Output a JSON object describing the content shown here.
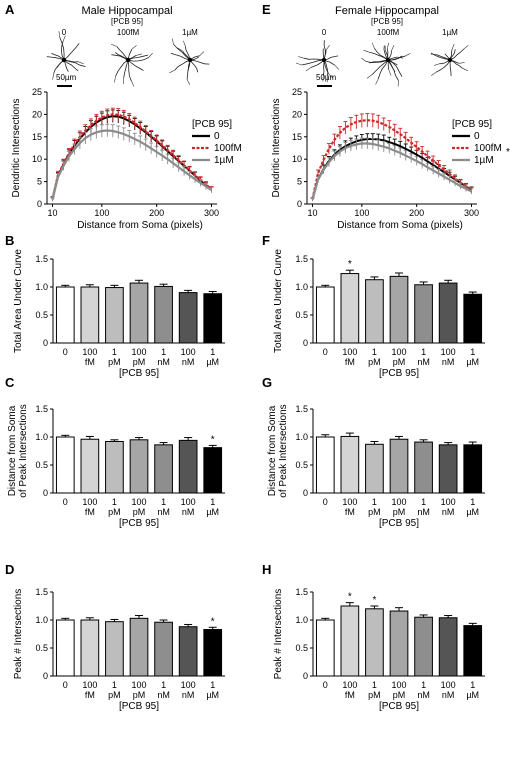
{
  "neuron_labels": [
    "0",
    "100fM",
    "1µM"
  ],
  "scale_bar": "50µm",
  "chart_data": [
    {
      "panel": "A",
      "type": "line",
      "title": "Male Hippocampal",
      "subtitle": "[PCB 95]",
      "xlabel": "Distance from Soma (pixels)",
      "ylabel": "Dendritic Intersections",
      "xlim": [
        0,
        310
      ],
      "ylim": [
        0,
        25
      ],
      "xticks": [
        10,
        100,
        200,
        300
      ],
      "yticks": [
        0,
        5,
        10,
        15,
        20,
        25
      ],
      "legend_title": "[PCB 95]",
      "legend_placement": "right",
      "x": [
        10,
        20,
        30,
        40,
        50,
        60,
        70,
        80,
        90,
        100,
        110,
        120,
        130,
        140,
        150,
        160,
        170,
        180,
        190,
        200,
        210,
        220,
        230,
        240,
        250,
        260,
        270,
        280,
        290,
        300
      ],
      "series": [
        {
          "name": "0",
          "color": "#000000",
          "values": [
            1.2,
            6.2,
            8.8,
            11.0,
            13.0,
            14.6,
            16.0,
            17.2,
            18.2,
            18.9,
            19.4,
            19.6,
            19.5,
            19.1,
            18.5,
            17.8,
            16.9,
            16.0,
            15.0,
            14.0,
            12.9,
            11.8,
            10.7,
            9.6,
            8.5,
            7.4,
            6.3,
            5.2,
            4.2,
            3.2
          ],
          "err": [
            0.4,
            0.8,
            1.0,
            1.1,
            1.2,
            1.3,
            1.3,
            1.4,
            1.4,
            1.4,
            1.4,
            1.4,
            1.4,
            1.4,
            1.3,
            1.3,
            1.3,
            1.3,
            1.2,
            1.2,
            1.2,
            1.1,
            1.1,
            1.0,
            1.0,
            0.9,
            0.8,
            0.8,
            0.7,
            0.6
          ]
        },
        {
          "name": "100fM",
          "color": "#cc2a2a",
          "values": [
            1.0,
            6.5,
            9.0,
            11.3,
            13.3,
            15.0,
            16.4,
            17.6,
            18.6,
            19.3,
            19.8,
            20.0,
            19.9,
            19.5,
            18.9,
            18.1,
            17.2,
            16.2,
            15.2,
            14.2,
            13.1,
            12.0,
            10.9,
            9.8,
            8.6,
            7.5,
            6.4,
            5.3,
            4.3,
            3.3
          ],
          "err": [
            0.4,
            0.8,
            1.0,
            1.1,
            1.2,
            1.3,
            1.3,
            1.4,
            1.4,
            1.4,
            1.4,
            1.4,
            1.4,
            1.4,
            1.3,
            1.3,
            1.3,
            1.3,
            1.2,
            1.2,
            1.2,
            1.1,
            1.1,
            1.0,
            1.0,
            0.9,
            0.8,
            0.8,
            0.7,
            0.6
          ]
        },
        {
          "name": "1µM",
          "color": "#8c8c8c",
          "values": [
            1.0,
            6.0,
            8.5,
            10.6,
            12.2,
            13.6,
            14.7,
            15.5,
            16.0,
            16.3,
            16.4,
            16.3,
            16.0,
            15.6,
            15.1,
            14.5,
            13.9,
            13.2,
            12.4,
            11.6,
            10.8,
            10.0,
            9.1,
            8.2,
            7.3,
            6.4,
            5.5,
            4.7,
            3.9,
            3.1
          ],
          "err": [
            0.4,
            0.8,
            1.0,
            1.1,
            1.2,
            1.3,
            1.3,
            1.4,
            1.4,
            1.4,
            1.4,
            1.4,
            1.4,
            1.4,
            1.3,
            1.3,
            1.3,
            1.3,
            1.2,
            1.2,
            1.2,
            1.1,
            1.1,
            1.0,
            1.0,
            0.9,
            0.8,
            0.8,
            0.7,
            0.6
          ]
        }
      ]
    },
    {
      "panel": "E",
      "type": "line",
      "title": "Female Hippocampal",
      "subtitle": "[PCB 95]",
      "xlabel": "Distance from Soma (pixels)",
      "ylabel": "Dendritic Intersections",
      "xlim": [
        0,
        310
      ],
      "ylim": [
        0,
        25
      ],
      "xticks": [
        10,
        100,
        200,
        300
      ],
      "yticks": [
        0,
        5,
        10,
        15,
        20,
        25
      ],
      "legend_title": "[PCB 95]",
      "legend_placement": "right",
      "annotation": "*",
      "x": [
        10,
        20,
        30,
        40,
        50,
        60,
        70,
        80,
        90,
        100,
        110,
        120,
        130,
        140,
        150,
        160,
        170,
        180,
        190,
        200,
        210,
        220,
        230,
        240,
        250,
        260,
        270,
        280,
        290,
        300
      ],
      "series": [
        {
          "name": "0",
          "color": "#000000",
          "values": [
            1.0,
            5.5,
            7.8,
            9.6,
            11.0,
            12.1,
            12.9,
            13.5,
            14.0,
            14.3,
            14.5,
            14.5,
            14.4,
            14.2,
            13.8,
            13.4,
            12.9,
            12.3,
            11.7,
            11.0,
            10.3,
            9.5,
            8.7,
            7.9,
            7.1,
            6.3,
            5.5,
            4.7,
            3.9,
            3.2
          ],
          "err": [
            0.3,
            0.7,
            0.9,
            1.0,
            1.1,
            1.1,
            1.2,
            1.2,
            1.2,
            1.2,
            1.2,
            1.2,
            1.2,
            1.2,
            1.1,
            1.1,
            1.1,
            1.1,
            1.0,
            1.0,
            1.0,
            0.9,
            0.9,
            0.9,
            0.8,
            0.8,
            0.7,
            0.7,
            0.6,
            0.6
          ]
        },
        {
          "name": "100fM",
          "color": "#cc2a2a",
          "values": [
            1.1,
            6.8,
            9.8,
            12.3,
            14.3,
            15.9,
            17.0,
            17.8,
            18.3,
            18.6,
            18.7,
            18.6,
            18.3,
            17.8,
            17.2,
            16.4,
            15.6,
            14.7,
            13.7,
            12.7,
            11.7,
            10.7,
            9.7,
            8.7,
            7.7,
            6.7,
            5.7,
            4.8,
            3.9,
            3.1
          ],
          "err": [
            0.3,
            0.8,
            1.0,
            1.2,
            1.3,
            1.4,
            1.4,
            1.5,
            1.5,
            1.5,
            1.5,
            1.5,
            1.5,
            1.4,
            1.4,
            1.4,
            1.3,
            1.3,
            1.2,
            1.2,
            1.1,
            1.1,
            1.0,
            1.0,
            0.9,
            0.9,
            0.8,
            0.7,
            0.7,
            0.6
          ]
        },
        {
          "name": "1µM",
          "color": "#8c8c8c",
          "values": [
            1.0,
            5.4,
            7.6,
            9.3,
            10.7,
            11.7,
            12.5,
            13.0,
            13.3,
            13.5,
            13.5,
            13.4,
            13.1,
            12.8,
            12.4,
            11.9,
            11.4,
            10.8,
            10.2,
            9.6,
            8.9,
            8.2,
            7.5,
            6.8,
            6.1,
            5.4,
            4.7,
            4.0,
            3.4,
            2.8
          ],
          "err": [
            0.3,
            0.7,
            0.9,
            1.0,
            1.1,
            1.1,
            1.2,
            1.2,
            1.2,
            1.2,
            1.2,
            1.2,
            1.2,
            1.2,
            1.1,
            1.1,
            1.1,
            1.1,
            1.0,
            1.0,
            1.0,
            0.9,
            0.9,
            0.9,
            0.8,
            0.8,
            0.7,
            0.7,
            0.6,
            0.6
          ]
        }
      ]
    },
    {
      "panel": "B",
      "type": "bar",
      "ylabel": "Total Area Under Curve",
      "xlabel": "[PCB 95]",
      "ylim": [
        0,
        1.5
      ],
      "yticks": [
        "0",
        "0.5",
        "1.0",
        "1.5"
      ],
      "categories": [
        [
          "0",
          ""
        ],
        [
          "100",
          "fM"
        ],
        [
          "1",
          "pM"
        ],
        [
          "100",
          "pM"
        ],
        [
          "1",
          "nM"
        ],
        [
          "100",
          "nM"
        ],
        [
          "1",
          "µM"
        ]
      ],
      "values": [
        1.0,
        1.0,
        0.99,
        1.07,
        1.01,
        0.9,
        0.88
      ],
      "err": [
        0.03,
        0.04,
        0.04,
        0.05,
        0.04,
        0.04,
        0.04
      ],
      "colors": [
        "#ffffff",
        "#d4d4d4",
        "#bdbdbd",
        "#a6a6a6",
        "#8e8e8e",
        "#555555",
        "#000000"
      ],
      "sig": [
        "",
        "",
        "",
        "",
        "",
        "",
        ""
      ]
    },
    {
      "panel": "F",
      "type": "bar",
      "ylabel": "Total Area Under Curve",
      "xlabel": "[PCB 95]",
      "ylim": [
        0,
        1.5
      ],
      "yticks": [
        "0",
        "0.5",
        "1.0",
        "1.5"
      ],
      "categories": [
        [
          "0",
          ""
        ],
        [
          "100",
          "fM"
        ],
        [
          "1",
          "pM"
        ],
        [
          "100",
          "pM"
        ],
        [
          "1",
          "nM"
        ],
        [
          "100",
          "nM"
        ],
        [
          "1",
          "µM"
        ]
      ],
      "values": [
        1.0,
        1.24,
        1.13,
        1.19,
        1.04,
        1.07,
        0.87
      ],
      "err": [
        0.03,
        0.06,
        0.05,
        0.06,
        0.05,
        0.05,
        0.04
      ],
      "colors": [
        "#ffffff",
        "#d4d4d4",
        "#bdbdbd",
        "#a6a6a6",
        "#8e8e8e",
        "#555555",
        "#000000"
      ],
      "sig": [
        "",
        "*",
        "",
        "",
        "",
        "",
        ""
      ]
    },
    {
      "panel": "C",
      "type": "bar",
      "ylabel": "Distance from Soma of Peak Intersections",
      "xlabel": "[PCB 95]",
      "ylim": [
        0,
        1.5
      ],
      "yticks": [
        "0",
        "0.5",
        "1.0",
        "1.5"
      ],
      "categories": [
        [
          "0",
          ""
        ],
        [
          "100",
          "fM"
        ],
        [
          "1",
          "pM"
        ],
        [
          "100",
          "pM"
        ],
        [
          "1",
          "nM"
        ],
        [
          "100",
          "nM"
        ],
        [
          "1",
          "µM"
        ]
      ],
      "values": [
        1.0,
        0.96,
        0.92,
        0.95,
        0.86,
        0.94,
        0.81
      ],
      "err": [
        0.03,
        0.05,
        0.03,
        0.04,
        0.04,
        0.05,
        0.04
      ],
      "colors": [
        "#ffffff",
        "#d4d4d4",
        "#bdbdbd",
        "#a6a6a6",
        "#8e8e8e",
        "#555555",
        "#000000"
      ],
      "sig": [
        "",
        "",
        "",
        "",
        "",
        "",
        "*"
      ]
    },
    {
      "panel": "G",
      "type": "bar",
      "ylabel": "Distance from Soma of Peak Intersections",
      "xlabel": "[PCB 95]",
      "ylim": [
        0,
        1.5
      ],
      "yticks": [
        "0",
        "0.5",
        "1.0",
        "1.5"
      ],
      "categories": [
        [
          "0",
          ""
        ],
        [
          "100",
          "fM"
        ],
        [
          "1",
          "pM"
        ],
        [
          "100",
          "pM"
        ],
        [
          "1",
          "nM"
        ],
        [
          "100",
          "nM"
        ],
        [
          "1",
          "µM"
        ]
      ],
      "values": [
        1.0,
        1.01,
        0.87,
        0.96,
        0.91,
        0.86,
        0.86
      ],
      "err": [
        0.04,
        0.06,
        0.05,
        0.05,
        0.04,
        0.04,
        0.05
      ],
      "colors": [
        "#ffffff",
        "#d4d4d4",
        "#bdbdbd",
        "#a6a6a6",
        "#8e8e8e",
        "#555555",
        "#000000"
      ],
      "sig": [
        "",
        "",
        "",
        "",
        "",
        "",
        ""
      ]
    },
    {
      "panel": "D",
      "type": "bar",
      "ylabel": "Peak # Intersections",
      "xlabel": "[PCB 95]",
      "ylim": [
        0,
        1.5
      ],
      "yticks": [
        "0",
        "0.5",
        "1.0",
        "1.5"
      ],
      "categories": [
        [
          "0",
          ""
        ],
        [
          "100",
          "fM"
        ],
        [
          "1",
          "pM"
        ],
        [
          "100",
          "pM"
        ],
        [
          "1",
          "nM"
        ],
        [
          "100",
          "nM"
        ],
        [
          "1",
          "µM"
        ]
      ],
      "values": [
        1.0,
        1.0,
        0.97,
        1.03,
        0.96,
        0.88,
        0.83
      ],
      "err": [
        0.03,
        0.04,
        0.04,
        0.05,
        0.04,
        0.04,
        0.04
      ],
      "colors": [
        "#ffffff",
        "#d4d4d4",
        "#bdbdbd",
        "#a6a6a6",
        "#8e8e8e",
        "#555555",
        "#000000"
      ],
      "sig": [
        "",
        "",
        "",
        "",
        "",
        "",
        "*"
      ]
    },
    {
      "panel": "H",
      "type": "bar",
      "ylabel": "Peak # Intersections",
      "xlabel": "[PCB 95]",
      "ylim": [
        0,
        1.5
      ],
      "yticks": [
        "0",
        "0.5",
        "1.0",
        "1.5"
      ],
      "categories": [
        [
          "0",
          ""
        ],
        [
          "100",
          "fM"
        ],
        [
          "1",
          "pM"
        ],
        [
          "100",
          "pM"
        ],
        [
          "1",
          "nM"
        ],
        [
          "100",
          "nM"
        ],
        [
          "1",
          "µM"
        ]
      ],
      "values": [
        1.0,
        1.25,
        1.2,
        1.16,
        1.05,
        1.04,
        0.9
      ],
      "err": [
        0.03,
        0.06,
        0.05,
        0.06,
        0.04,
        0.04,
        0.04
      ],
      "colors": [
        "#ffffff",
        "#d4d4d4",
        "#bdbdbd",
        "#a6a6a6",
        "#8e8e8e",
        "#555555",
        "#000000"
      ],
      "sig": [
        "",
        "*",
        "*",
        "",
        "",
        "",
        ""
      ]
    }
  ]
}
